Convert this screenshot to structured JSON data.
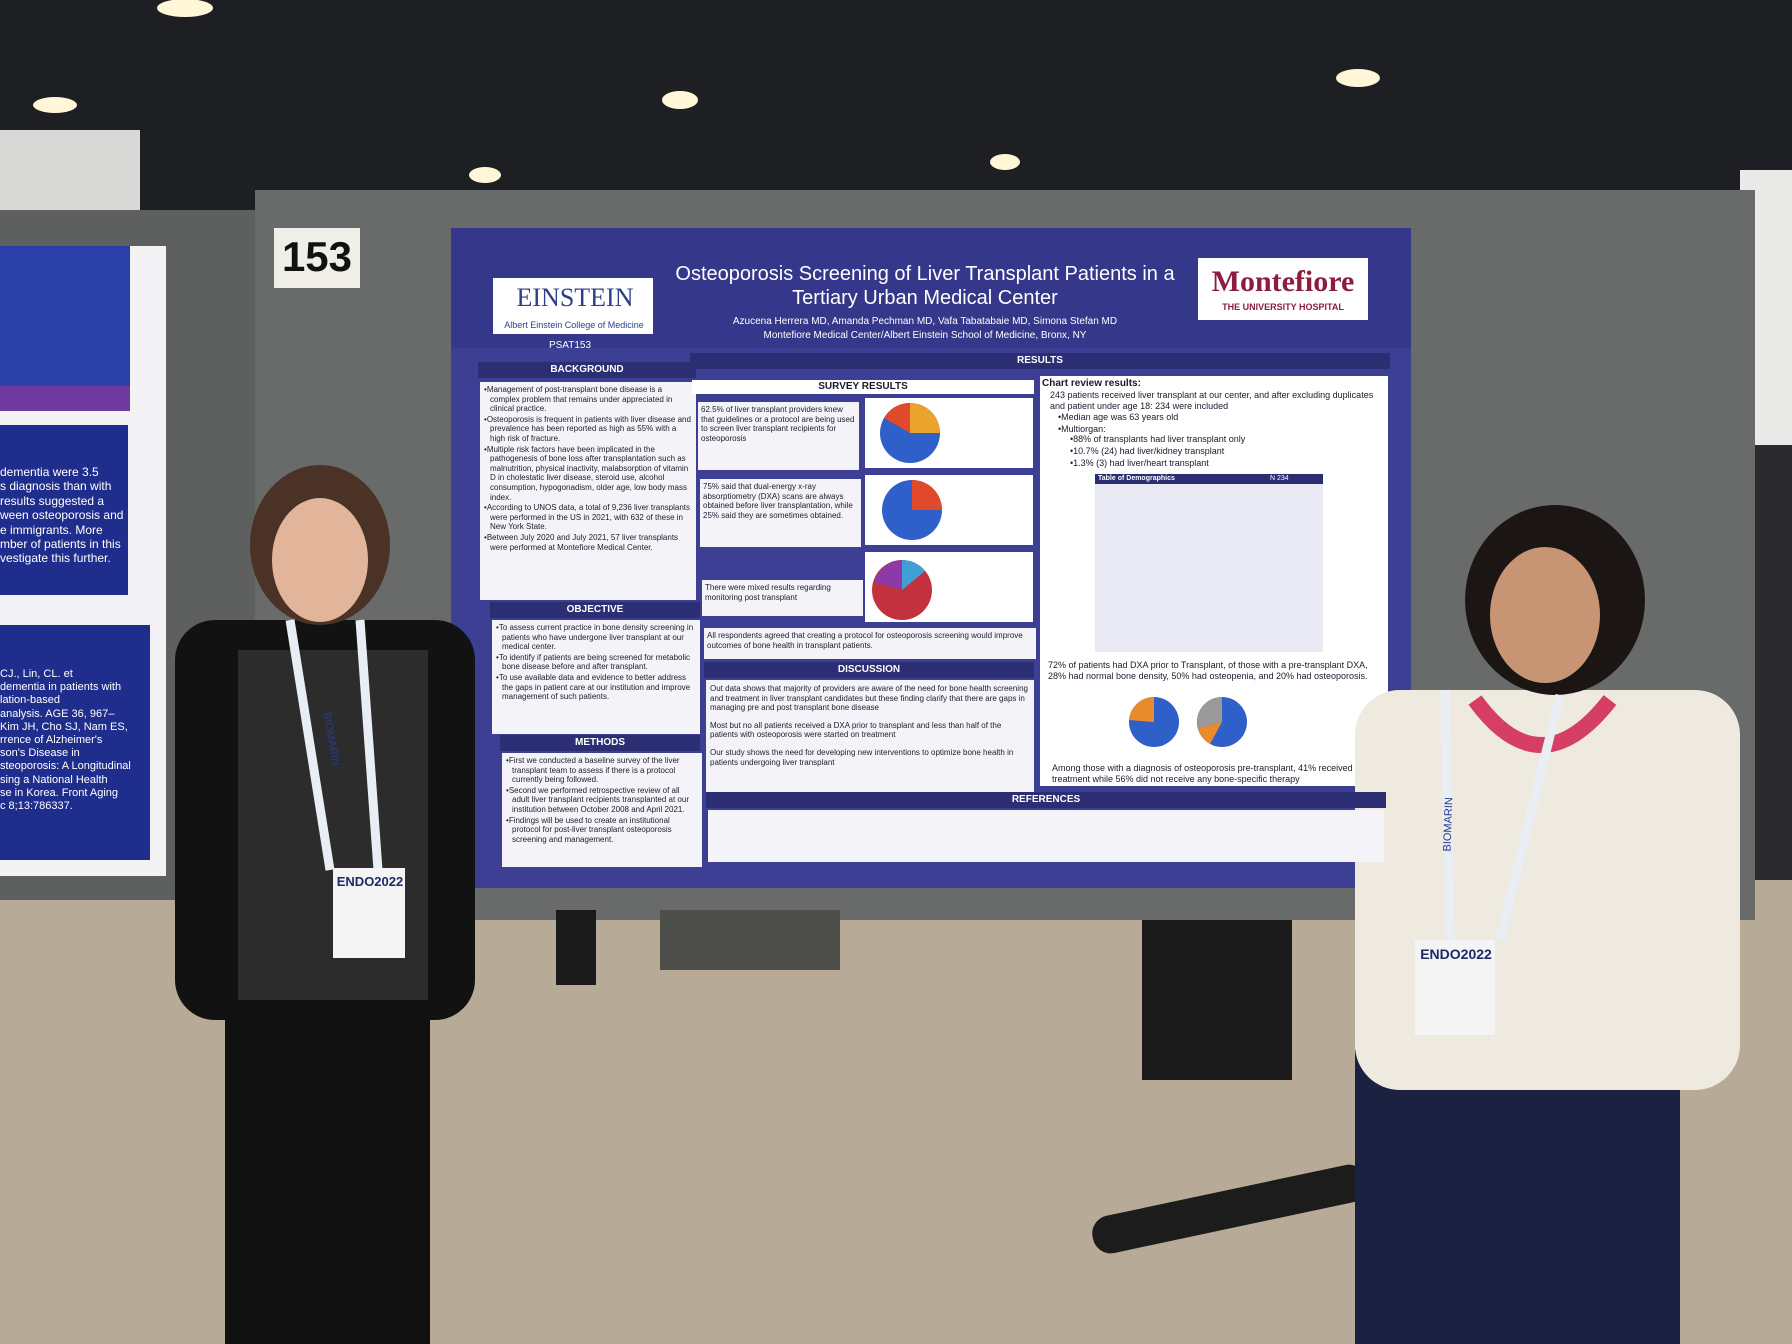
{
  "board": {
    "number": "153"
  },
  "left_poster": {
    "lines": [
      "dementia were 3.5",
      "s diagnosis than with",
      "results suggested a",
      "ween osteoporosis and",
      "e immigrants. More",
      "mber of patients in this",
      "vestigate this further."
    ],
    "refs": [
      "CJ., Lin, CL. et",
      "dementia in patients with",
      "lation-based",
      "analysis. AGE 36, 967–",
      "Kim JH, Cho SJ, Nam ES,",
      "rrence of Alzheimer's",
      "son's Disease in",
      "steoporosis: A Longitudinal",
      "sing a National Health",
      "se in Korea. Front Aging",
      "c 8;13:786337."
    ]
  },
  "poster": {
    "title": "Osteoporosis Screening of Liver Transplant Patients in a Tertiary Urban Medical Center",
    "authors": "Azucena Herrera MD, Amanda Pechman MD, Vafa Tabatabaie MD, Simona Stefan MD",
    "affiliation": "Montefiore Medical Center/Albert Einstein School of Medicine, Bronx, NY",
    "left_logo": {
      "name": "EINSTEIN",
      "sub": "Albert Einstein College of Medicine"
    },
    "right_logo": {
      "name": "Montefiore",
      "sub": "THE UNIVERSITY HOSPITAL"
    },
    "code": "PSAT153",
    "results_header": "RESULTS",
    "background": {
      "heading": "BACKGROUND",
      "bullets": [
        "Management of post-transplant bone disease is a complex problem that remains under appreciated in clinical practice.",
        "Osteoporosis is frequent in patients with liver disease and prevalence has been reported as high as 55% with a high risk of fracture.",
        "Multiple risk factors have been implicated in the pathogenesis of bone loss after transplantation such as malnutrition, physical inactivity, malabsorption of vitamin D in cholestatic liver disease, steroid use, alcohol consumption, hypogonadism, older age, low body mass index.",
        "According to UNOS data, a total of 9,236 liver transplants were performed in the US in 2021, with 632 of these in New York State.",
        "Between July 2020 and July 2021, 57 liver transplants were performed at Montefiore Medical Center."
      ]
    },
    "objective": {
      "heading": "OBJECTIVE",
      "bullets": [
        "To assess current practice in bone density screening in patients who have undergone liver transplant at our medical center.",
        "To identify if patients are being screened for metabolic bone disease before and after transplant.",
        "To use available data and evidence to better address the gaps in patient care at our institution and improve management of such patients."
      ]
    },
    "methods": {
      "heading": "METHODS",
      "bullets": [
        "First we conducted a baseline survey of the liver transplant team to assess if there is a protocol currently being followed.",
        "Second we performed retrospective review of all adult liver transplant recipients transplanted at our institution between October 2008 and April 2021.",
        "Findings will be used to create an institutional protocol for post-liver transplant osteoporosis screening and management."
      ]
    },
    "survey": {
      "heading": "SURVEY RESULTS",
      "items": [
        "62.5% of liver transplant providers knew that guidelines or a protocol are being used to screen liver transplant recipients for osteoporosis",
        "75% said that dual-energy x-ray absorptiometry (DXA) scans are always obtained before liver transplantation, while 25% said they are sometimes obtained.",
        "There were mixed results regarding monitoring post transplant"
      ],
      "agreement": "All respondents agreed that creating a protocol for osteoporosis screening would improve outcomes of bone health in transplant patients."
    },
    "discussion": {
      "heading": "DISCUSSION",
      "items": [
        "Out data shows that majority of providers are aware of the need for bone health screening and treatment in liver transplant candidates but these finding clarify that there are gaps in managing pre and post transplant bone disease",
        "Most but no all patients received a DXA prior to transplant and less than half of the patients with osteoporosis were started on treatment",
        "Our study shows the need for developing new interventions to optimize bone health in patients undergoing liver transplant"
      ]
    },
    "chart_review": {
      "heading": "Chart review results:",
      "intro": "243 patients received liver transplant at our center, and after excluding duplicates and patient under age 18: 234 were included",
      "bullets": [
        "Median age was 63 years old",
        "Multiorgan:"
      ],
      "sub": [
        "88% of transplants had liver transplant only",
        "10.7% (24) had liver/kidney transplant",
        "1.3% (3) had liver/heart transplant"
      ],
      "table_title": "Table of Demographics",
      "table_n": "N 234",
      "dxa": "72% of patients had DXA prior to Transplant, of those with a pre-transplant DXA, 28% had normal bone density, 50% had osteopenia, and 20% had osteoporosis.",
      "treatment": "Among those with a diagnosis of osteoporosis pre-transplant, 41% received treatment while 56% did not receive any bone-specific therapy"
    },
    "references": {
      "heading": "REFERENCES"
    }
  },
  "badges": {
    "conference": "ENDO2022",
    "sponsor": "BIOMARIN"
  }
}
